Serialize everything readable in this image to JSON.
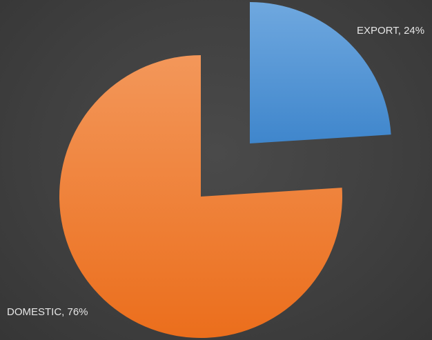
{
  "chart_data": {
    "type": "pie",
    "exploded": true,
    "slices": [
      {
        "name": "EXPORT",
        "value": 24,
        "label": "EXPORT, 24%",
        "color": "#5b9bd5"
      },
      {
        "name": "DOMESTIC",
        "value": 76,
        "label": "DOMESTIC, 76%",
        "color": "#ed7d31"
      }
    ],
    "title": "",
    "legend": "none",
    "background": "#404040"
  }
}
